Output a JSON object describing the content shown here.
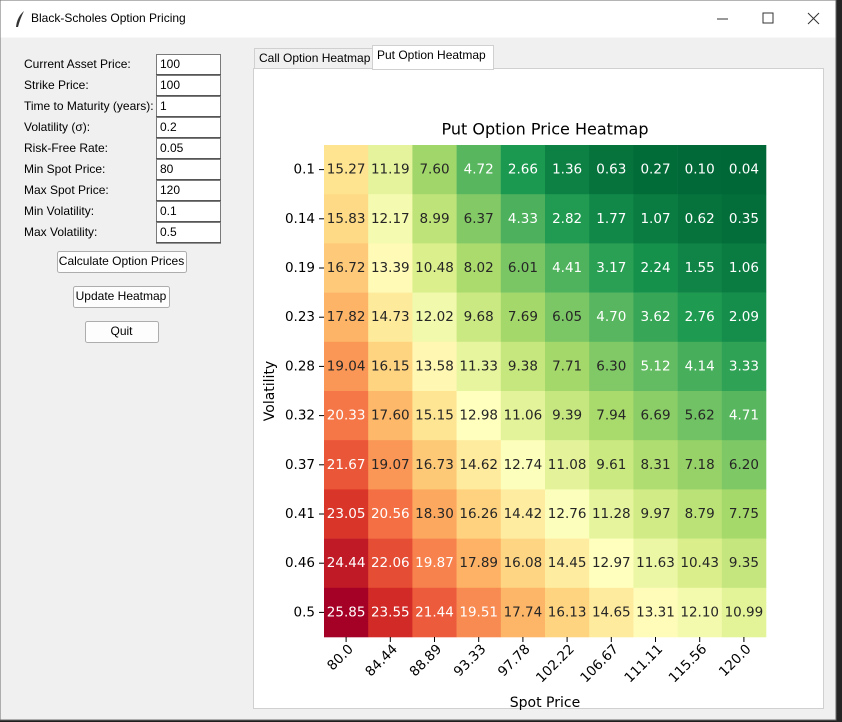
{
  "window": {
    "title": "Black-Scholes Option Pricing"
  },
  "form": {
    "fields": [
      {
        "label": "Current Asset Price:",
        "value": "100"
      },
      {
        "label": "Strike Price:",
        "value": "100"
      },
      {
        "label": "Time to Maturity (years):",
        "value": "1"
      },
      {
        "label": "Volatility (σ):",
        "value": "0.2"
      },
      {
        "label": "Risk-Free Rate:",
        "value": "0.05"
      },
      {
        "label": "Min Spot Price:",
        "value": "80"
      },
      {
        "label": "Max Spot Price:",
        "value": "120"
      },
      {
        "label": "Min Volatility:",
        "value": "0.1"
      },
      {
        "label": "Max Volatility:",
        "value": "0.5"
      }
    ]
  },
  "buttons": [
    "Calculate Option Prices",
    "Update Heatmap",
    "Quit"
  ],
  "tabs": {
    "items": [
      "Call Option Heatmap",
      "Put Option Heatmap"
    ],
    "selected": 1
  },
  "chart_data": {
    "type": "heatmap",
    "title": "Put Option Price Heatmap",
    "x_label": "Spot Price",
    "y_label": "Volatility",
    "colormap": "RdYlGn_r",
    "x": [
      "80.0",
      "84.44",
      "88.89",
      "93.33",
      "97.78",
      "102.22",
      "106.67",
      "111.11",
      "115.56",
      "120.0"
    ],
    "y": [
      0.1,
      0.14,
      0.19,
      0.23,
      0.28,
      0.32,
      0.37,
      0.41,
      0.46,
      0.5
    ],
    "values": [
      [
        15.27,
        11.19,
        7.6,
        4.72,
        2.66,
        1.36,
        0.63,
        0.27,
        0.1,
        0.04
      ],
      [
        15.83,
        12.17,
        8.99,
        6.37,
        4.33,
        2.82,
        1.77,
        1.07,
        0.62,
        0.35
      ],
      [
        16.72,
        13.39,
        10.48,
        8.02,
        6.01,
        4.41,
        3.17,
        2.24,
        1.55,
        1.06
      ],
      [
        17.82,
        14.73,
        12.02,
        9.68,
        7.69,
        6.05,
        4.7,
        3.62,
        2.76,
        2.09
      ],
      [
        19.04,
        16.15,
        13.58,
        11.33,
        9.38,
        7.71,
        6.3,
        5.12,
        4.14,
        3.33
      ],
      [
        20.33,
        17.6,
        15.15,
        12.98,
        11.06,
        9.39,
        7.94,
        6.69,
        5.62,
        4.71
      ],
      [
        21.67,
        19.07,
        16.73,
        14.62,
        12.74,
        11.08,
        9.61,
        8.31,
        7.18,
        6.2
      ],
      [
        23.05,
        20.56,
        18.3,
        16.26,
        14.42,
        12.76,
        11.28,
        9.97,
        8.79,
        7.75
      ],
      [
        24.44,
        22.06,
        19.87,
        17.89,
        16.08,
        14.45,
        12.97,
        11.63,
        10.43,
        9.35
      ],
      [
        25.85,
        23.55,
        21.44,
        19.51,
        17.74,
        16.13,
        14.65,
        13.31,
        12.1,
        10.99
      ]
    ],
    "value_labels": [
      [
        "15.27",
        "11.19",
        "7.60",
        "4.72",
        "2.66",
        "1.36",
        "0.63",
        "0.27",
        "0.10",
        "0.04"
      ],
      [
        "15.83",
        "12.17",
        "8.99",
        "6.37",
        "4.33",
        "2.82",
        "1.77",
        "1.07",
        "0.62",
        "0.35"
      ],
      [
        "16.72",
        "13.39",
        "10.48",
        "8.02",
        "6.01",
        "4.41",
        "3.17",
        "2.24",
        "1.55",
        "1.06"
      ],
      [
        "17.82",
        "14.73",
        "12.02",
        "9.68",
        "7.69",
        "6.05",
        "4.70",
        "3.62",
        "2.76",
        "2.09"
      ],
      [
        "19.04",
        "16.15",
        "13.58",
        "11.33",
        "9.38",
        "7.71",
        "6.30",
        "5.12",
        "4.14",
        "3.33"
      ],
      [
        "20.33",
        "17.60",
        "15.15",
        "12.98",
        "11.06",
        "9.39",
        "7.94",
        "6.69",
        "5.62",
        "4.71"
      ],
      [
        "21.67",
        "19.07",
        "16.73",
        "14.62",
        "12.74",
        "11.08",
        "9.61",
        "8.31",
        "7.18",
        "6.20"
      ],
      [
        "23.05",
        "20.56",
        "18.30",
        "16.26",
        "14.42",
        "12.76",
        "11.28",
        "9.97",
        "8.79",
        "7.75"
      ],
      [
        "24.44",
        "22.06",
        "19.87",
        "17.89",
        "16.08",
        "14.45",
        "12.97",
        "11.63",
        "10.43",
        "9.35"
      ],
      [
        "25.85",
        "23.55",
        "21.44",
        "19.51",
        "17.74",
        "16.13",
        "14.65",
        "13.31",
        "12.10",
        "10.99"
      ]
    ]
  }
}
